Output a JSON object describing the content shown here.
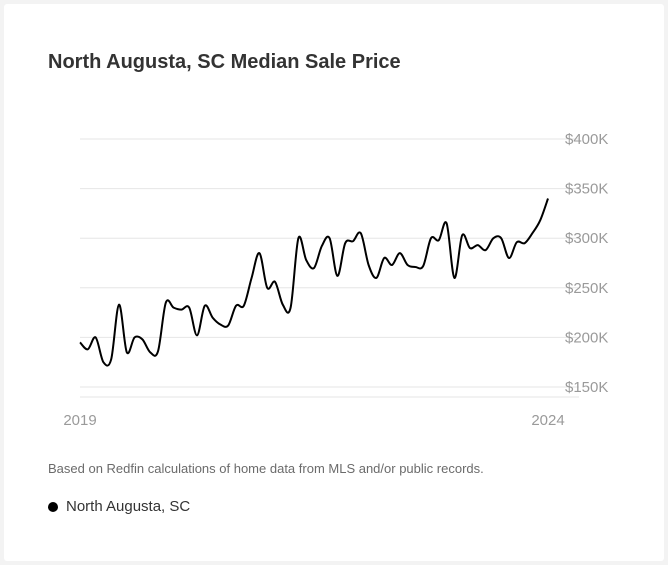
{
  "chart_data": {
    "type": "line",
    "title": "North Augusta, SC Median Sale Price",
    "xlabel": "",
    "ylabel": "",
    "x_ticks": [
      "2019",
      "2024"
    ],
    "x_range": [
      2019,
      2024
    ],
    "y_ticks": [
      {
        "value": 150000,
        "label": "$150K"
      },
      {
        "value": 200000,
        "label": "$200K"
      },
      {
        "value": 250000,
        "label": "$250K"
      },
      {
        "value": 300000,
        "label": "$300K"
      },
      {
        "value": 350000,
        "label": "$350K"
      },
      {
        "value": 400000,
        "label": "$400K"
      }
    ],
    "ylim": [
      140000,
      410000
    ],
    "grid": true,
    "series": [
      {
        "name": "North Augusta, SC",
        "color": "#000000",
        "x": [
          2019.0,
          2019.083,
          2019.167,
          2019.25,
          2019.333,
          2019.417,
          2019.5,
          2019.583,
          2019.667,
          2019.75,
          2019.833,
          2019.917,
          2020.0,
          2020.083,
          2020.167,
          2020.25,
          2020.333,
          2020.417,
          2020.5,
          2020.583,
          2020.667,
          2020.75,
          2020.833,
          2020.917,
          2021.0,
          2021.083,
          2021.167,
          2021.25,
          2021.333,
          2021.417,
          2021.5,
          2021.583,
          2021.667,
          2021.75,
          2021.833,
          2021.917,
          2022.0,
          2022.083,
          2022.167,
          2022.25,
          2022.333,
          2022.417,
          2022.5,
          2022.583,
          2022.667,
          2022.75,
          2022.833,
          2022.917,
          2023.0,
          2023.083,
          2023.167,
          2023.25,
          2023.333,
          2023.417,
          2023.5,
          2023.583,
          2023.667,
          2023.75,
          2023.833,
          2023.917,
          2024.0
        ],
        "values": [
          195000,
          188000,
          200000,
          175000,
          178000,
          233000,
          185000,
          200000,
          198000,
          185000,
          186000,
          235000,
          230000,
          228000,
          230000,
          202000,
          232000,
          220000,
          213000,
          212000,
          232000,
          232000,
          260000,
          285000,
          250000,
          256000,
          233000,
          230000,
          300000,
          278000,
          270000,
          292000,
          300000,
          262000,
          295000,
          297000,
          305000,
          273000,
          260000,
          280000,
          273000,
          285000,
          273000,
          271000,
          272000,
          300000,
          298000,
          315000,
          260000,
          303000,
          290000,
          293000,
          288000,
          300000,
          300000,
          280000,
          296000,
          295000,
          305000,
          318000,
          340000
        ]
      }
    ]
  },
  "footnote": "Based on Redfin calculations of home data from MLS and/or public records.",
  "legend": {
    "label": "North Augusta, SC",
    "color": "#000000"
  }
}
